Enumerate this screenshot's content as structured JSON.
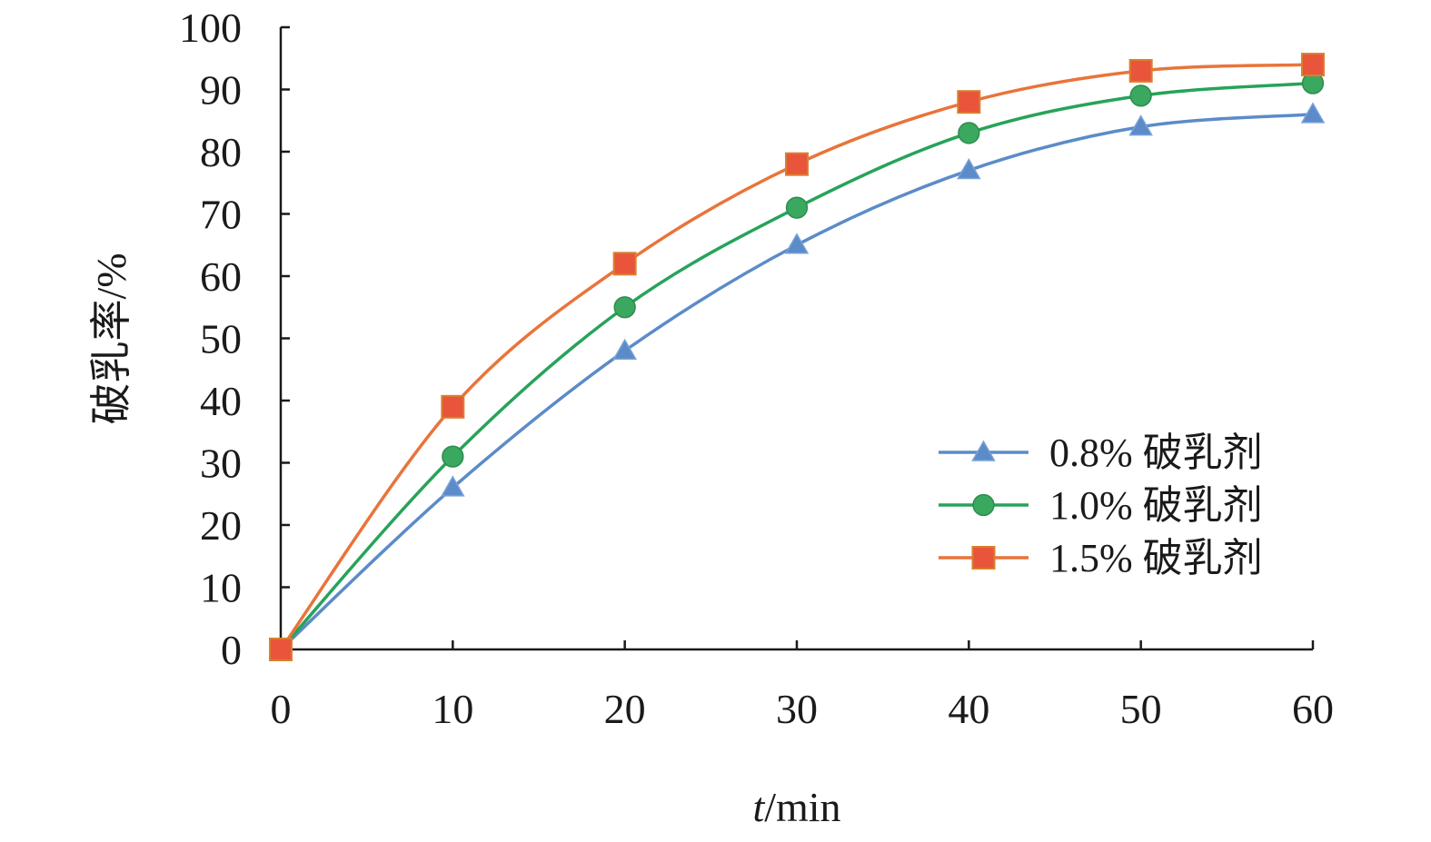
{
  "chart_data": {
    "type": "line",
    "title": "",
    "xlabel_italic": "t",
    "xlabel_rest": "/min",
    "ylabel": "破乳率/%",
    "x": [
      0,
      10,
      20,
      30,
      40,
      50,
      60
    ],
    "xlim": [
      0,
      60
    ],
    "ylim": [
      0,
      100
    ],
    "x_ticks": [
      "0",
      "10",
      "20",
      "30",
      "40",
      "50",
      "60"
    ],
    "y_ticks": [
      "0",
      "10",
      "20",
      "30",
      "40",
      "50",
      "60",
      "70",
      "80",
      "90",
      "100"
    ],
    "grid": false,
    "legend_position": "right",
    "series": [
      {
        "name": "0.8% 破乳剂",
        "marker": "triangle",
        "color": "#5b8bc9",
        "marker_color": "#5b8bc9",
        "values": [
          0,
          26,
          48,
          65,
          77,
          84,
          86
        ]
      },
      {
        "name": "1.0% 破乳剂",
        "marker": "circle",
        "color": "#27a35a",
        "marker_color": "#3aa85f",
        "values": [
          0,
          31,
          55,
          71,
          83,
          89,
          91
        ]
      },
      {
        "name": "1.5% 破乳剂",
        "marker": "square",
        "color": "#e9743a",
        "marker_color": "#e8553a",
        "values": [
          0,
          39,
          62,
          78,
          88,
          93,
          94
        ]
      }
    ]
  }
}
